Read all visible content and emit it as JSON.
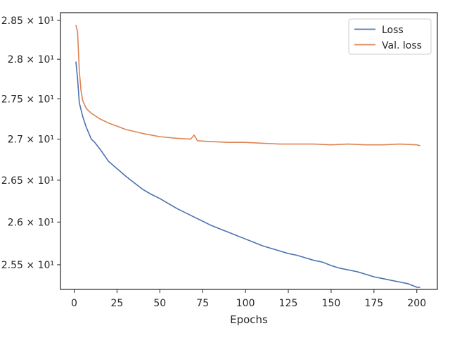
{
  "chart_data": {
    "type": "line",
    "title": "",
    "xlabel": "Epochs",
    "ylabel": "",
    "xlim": [
      -8,
      212
    ],
    "ylim": [
      25.215,
      28.6
    ],
    "y_scale": "log",
    "grid": false,
    "legend_position": "top-right",
    "x_ticks": [
      0,
      25,
      50,
      75,
      100,
      125,
      150,
      175,
      200
    ],
    "x_tick_labels": [
      "0",
      "25",
      "50",
      "75",
      "100",
      "125",
      "150",
      "175",
      "200"
    ],
    "y_ticks": [
      25.5,
      26.0,
      26.5,
      27.0,
      27.5,
      28.0,
      28.5
    ],
    "y_tick_labels": [
      "2.55 × 10¹",
      "2.6 × 10¹",
      "2.65 × 10¹",
      "2.7 × 10¹",
      "2.75 × 10¹",
      "2.8 × 10¹",
      "2.85 × 10¹"
    ],
    "series": [
      {
        "name": "Loss",
        "color": "#4c72b0",
        "x": [
          1,
          2,
          3,
          5,
          7,
          10,
          12,
          15,
          18,
          20,
          25,
          30,
          35,
          40,
          45,
          50,
          55,
          60,
          65,
          70,
          75,
          80,
          85,
          90,
          95,
          100,
          105,
          110,
          115,
          120,
          125,
          130,
          135,
          140,
          145,
          150,
          155,
          160,
          165,
          170,
          175,
          180,
          185,
          190,
          195,
          200,
          202
        ],
        "y": [
          27.97,
          27.75,
          27.45,
          27.28,
          27.15,
          27.0,
          26.96,
          26.88,
          26.79,
          26.73,
          26.64,
          26.55,
          26.47,
          26.39,
          26.33,
          26.28,
          26.22,
          26.16,
          26.11,
          26.06,
          26.01,
          25.96,
          25.92,
          25.88,
          25.84,
          25.8,
          25.76,
          25.72,
          25.69,
          25.66,
          25.63,
          25.61,
          25.58,
          25.55,
          25.53,
          25.49,
          25.46,
          25.44,
          25.42,
          25.39,
          25.36,
          25.34,
          25.32,
          25.3,
          25.28,
          25.24,
          25.24
        ]
      },
      {
        "name": "Val. loss",
        "color": "#dd8452",
        "x": [
          1,
          2,
          3,
          4,
          5,
          7,
          10,
          15,
          20,
          25,
          30,
          40,
          50,
          60,
          68,
          70,
          72,
          80,
          90,
          100,
          110,
          120,
          130,
          140,
          150,
          160,
          170,
          180,
          190,
          200,
          202
        ],
        "y": [
          28.44,
          28.35,
          27.85,
          27.6,
          27.48,
          27.38,
          27.32,
          27.25,
          27.2,
          27.16,
          27.12,
          27.07,
          27.03,
          27.01,
          27.0,
          27.05,
          26.98,
          26.97,
          26.96,
          26.96,
          26.95,
          26.94,
          26.94,
          26.94,
          26.93,
          26.94,
          26.93,
          26.93,
          26.94,
          26.93,
          26.92
        ]
      }
    ]
  }
}
